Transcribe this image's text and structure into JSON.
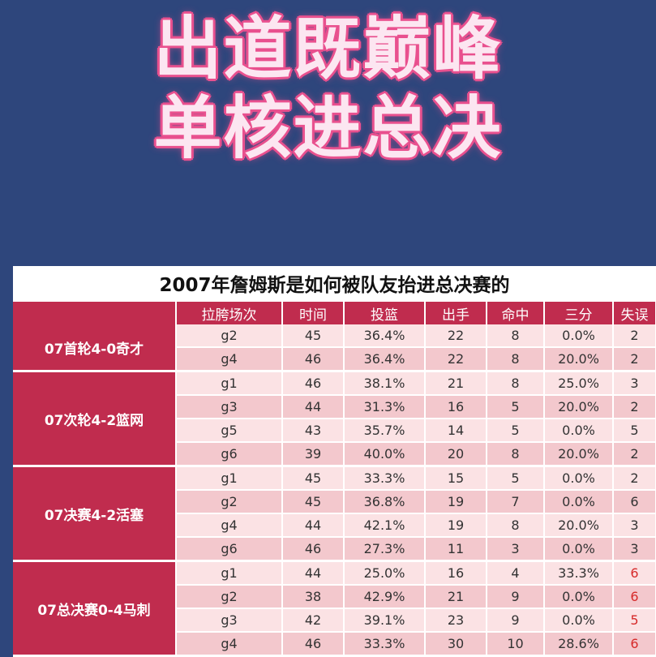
{
  "headline": {
    "line1": "出道既巅峰",
    "line2": "单核进总决"
  },
  "table": {
    "title": "2007年詹姆斯是如何被队友抬进总决赛的",
    "headers": [
      "拉胯场次",
      "时间",
      "投篮",
      "出手",
      "命中",
      "三分",
      "失误"
    ],
    "groups": [
      {
        "label": "07首轮4-0奇才",
        "rows": [
          [
            "g2",
            "45",
            "36.4%",
            "22",
            "8",
            "0.0%",
            "2"
          ],
          [
            "g4",
            "46",
            "36.4%",
            "22",
            "8",
            "20.0%",
            "2"
          ]
        ]
      },
      {
        "label": "07次轮4-2篮网",
        "rows": [
          [
            "g1",
            "46",
            "38.1%",
            "21",
            "8",
            "25.0%",
            "3"
          ],
          [
            "g3",
            "44",
            "31.3%",
            "16",
            "5",
            "20.0%",
            "2"
          ],
          [
            "g5",
            "43",
            "35.7%",
            "14",
            "5",
            "0.0%",
            "5"
          ],
          [
            "g6",
            "39",
            "40.0%",
            "20",
            "8",
            "20.0%",
            "2"
          ]
        ]
      },
      {
        "label": "07决赛4-2活塞",
        "rows": [
          [
            "g1",
            "45",
            "33.3%",
            "15",
            "5",
            "0.0%",
            "2"
          ],
          [
            "g2",
            "45",
            "36.8%",
            "19",
            "7",
            "0.0%",
            "6"
          ],
          [
            "g4",
            "44",
            "42.1%",
            "19",
            "8",
            "20.0%",
            "3"
          ],
          [
            "g6",
            "46",
            "27.3%",
            "11",
            "3",
            "0.0%",
            "3"
          ]
        ]
      },
      {
        "label": "07总决赛0-4马刺",
        "rows": [
          [
            "g1",
            "44",
            "25.0%",
            "16",
            "4",
            "33.3%",
            "6"
          ],
          [
            "g2",
            "38",
            "42.9%",
            "21",
            "9",
            "0.0%",
            "6"
          ],
          [
            "g3",
            "42",
            "39.1%",
            "23",
            "9",
            "0.0%",
            "5"
          ],
          [
            "g4",
            "46",
            "33.3%",
            "30",
            "10",
            "28.6%",
            "6"
          ]
        ]
      }
    ],
    "highlight_color": "#d62a2a"
  }
}
